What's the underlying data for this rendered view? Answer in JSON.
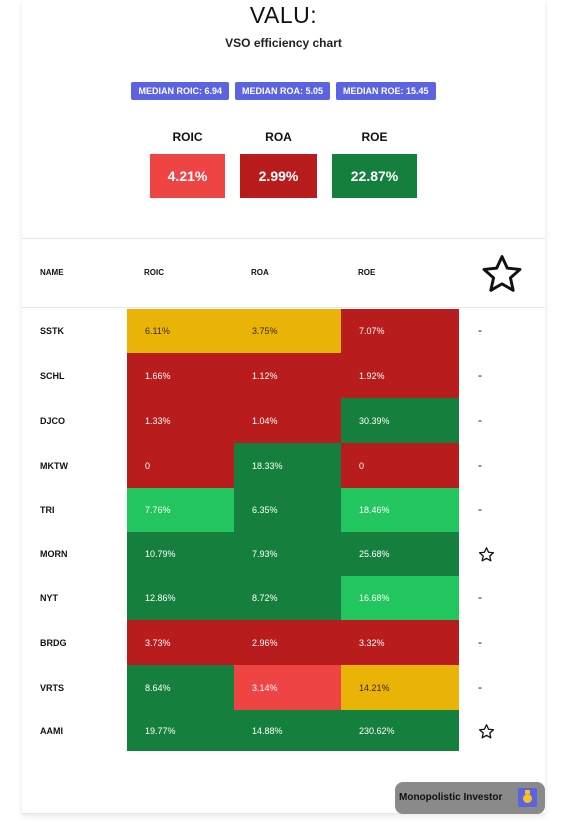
{
  "header": {
    "title": "VALU:",
    "subtitle": "VSO efficiency chart"
  },
  "medians": [
    "MEDIAN ROIC: 6.94",
    "MEDIAN ROA: 5.05",
    "MEDIAN ROE: 15.45"
  ],
  "summary": [
    {
      "label": "ROIC",
      "value": "4.21%",
      "color": "#ef4444"
    },
    {
      "label": "ROA",
      "value": "2.99%",
      "color": "#b91c1c"
    },
    {
      "label": "ROE",
      "value": "22.87%",
      "color": "#15803d"
    }
  ],
  "table": {
    "headers": {
      "name": "NAME",
      "roic": "ROIC",
      "roa": "ROA",
      "roe": "ROE"
    },
    "rows": [
      {
        "name": "SSTK",
        "roic": "6.11%",
        "roa": "3.75%",
        "roe": "7.07%",
        "fav": "-"
      },
      {
        "name": "SCHL",
        "roic": "1.66%",
        "roa": "1.12%",
        "roe": "1.92%",
        "fav": "-"
      },
      {
        "name": "DJCO",
        "roic": "1.33%",
        "roa": "1.04%",
        "roe": "30.39%",
        "fav": "-"
      },
      {
        "name": "MKTW",
        "roic": "0",
        "roa": "18.33%",
        "roe": "0",
        "fav": "-"
      },
      {
        "name": "TRI",
        "roic": "7.76%",
        "roa": "6.35%",
        "roe": "18.46%",
        "fav": "-"
      },
      {
        "name": "MORN",
        "roic": "10.79%",
        "roa": "7.93%",
        "roe": "25.68%",
        "fav": "star"
      },
      {
        "name": "NYT",
        "roic": "12.86%",
        "roa": "8.72%",
        "roe": "16.68%",
        "fav": "-"
      },
      {
        "name": "BRDG",
        "roic": "3.73%",
        "roa": "2.96%",
        "roe": "3.32%",
        "fav": "-"
      },
      {
        "name": "VRTS",
        "roic": "8.64%",
        "roa": "3.14%",
        "roe": "14.21%",
        "fav": "-"
      },
      {
        "name": "AAMI",
        "roic": "19.77%",
        "roa": "14.88%",
        "roe": "230.62%",
        "fav": "star"
      }
    ]
  },
  "colors": {
    "yellow": "#eab308",
    "dark_red": "#b91c1c",
    "red": "#ef4444",
    "dark_green": "#15803d",
    "green": "#22c55e",
    "badge": "#5b63e0"
  },
  "cell_colors": [
    [
      "yellow",
      "yellow",
      "dark_red"
    ],
    [
      "dark_red",
      "dark_red",
      "dark_red"
    ],
    [
      "dark_red",
      "dark_red",
      "dark_green"
    ],
    [
      "dark_red",
      "dark_green",
      "dark_red"
    ],
    [
      "green",
      "dark_green",
      "green"
    ],
    [
      "dark_green",
      "dark_green",
      "dark_green"
    ],
    [
      "dark_green",
      "dark_green",
      "green"
    ],
    [
      "dark_red",
      "dark_red",
      "dark_red"
    ],
    [
      "dark_green",
      "red",
      "yellow"
    ],
    [
      "dark_green",
      "dark_green",
      "dark_green"
    ]
  ],
  "footer": {
    "brand": "Monopolistic Investor",
    "icon": "medal-icon"
  }
}
